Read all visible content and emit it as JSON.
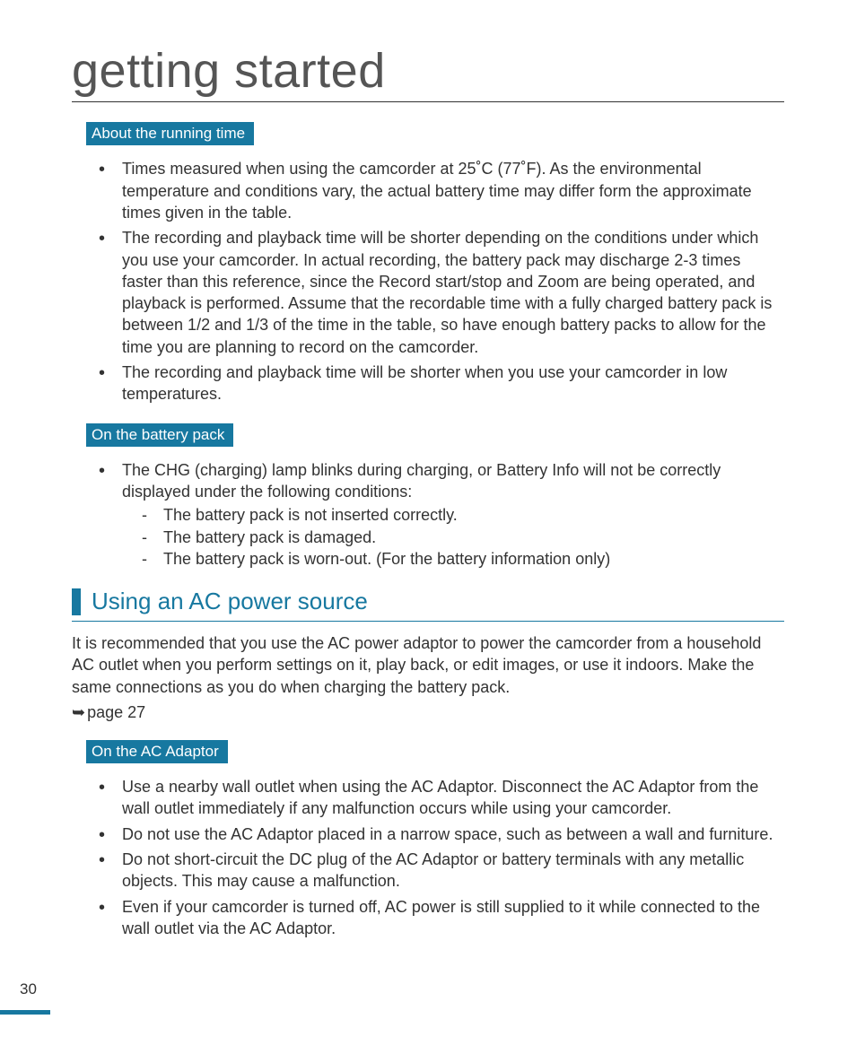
{
  "colors": {
    "accent": "#1778a0",
    "text": "#333333",
    "background": "#ffffff"
  },
  "chapter_title": "getting started",
  "sections": {
    "running_time": {
      "label": "About the running time",
      "bullets": [
        "Times measured when using the camcorder at 25˚C (77˚F). As the environmental temperature and conditions vary, the actual battery time may differ form the approximate times given in the table.",
        "The recording and playback time will be shorter depending on the conditions under which you use your camcorder. In actual recording, the battery pack may discharge 2-3 times faster than this reference, since the Record start/stop and Zoom are being operated, and playback is performed. Assume that the recordable time with a fully charged battery pack is between 1/2 and 1/3 of the time in the table, so have enough battery packs to allow for the time you are planning to record on the camcorder.",
        "The recording and playback time will be shorter when you use your camcorder in low temperatures."
      ]
    },
    "battery_pack": {
      "label": "On the battery pack",
      "intro": "The CHG (charging) lamp blinks during charging, or Battery Info will not be correctly displayed under the following conditions:",
      "subitems": [
        "The battery pack is not inserted correctly.",
        "The battery pack is damaged.",
        "The battery pack is worn-out. (For the battery information only)"
      ]
    },
    "ac_power": {
      "heading": "Using an AC power source",
      "paragraph": "It is recommended that you use the AC power adaptor to power the camcorder from a household AC outlet when you perform settings on it, play back, or edit images, or use it indoors. Make the same connections as you do when charging the battery pack.",
      "page_ref": "page 27"
    },
    "ac_adaptor": {
      "label": "On the AC Adaptor",
      "bullets": [
        "Use a nearby wall outlet when using the AC Adaptor. Disconnect the AC Adaptor from the wall outlet immediately if any malfunction occurs while using your camcorder.",
        "Do not use the AC Adaptor placed in a narrow space, such as between a wall and furniture.",
        "Do not short-circuit the DC plug of the AC Adaptor or battery terminals with any metallic objects. This may cause a malfunction.",
        "Even if your camcorder is turned off, AC power is still supplied to it while connected to the wall outlet via the AC Adaptor."
      ]
    }
  },
  "page_number": "30"
}
